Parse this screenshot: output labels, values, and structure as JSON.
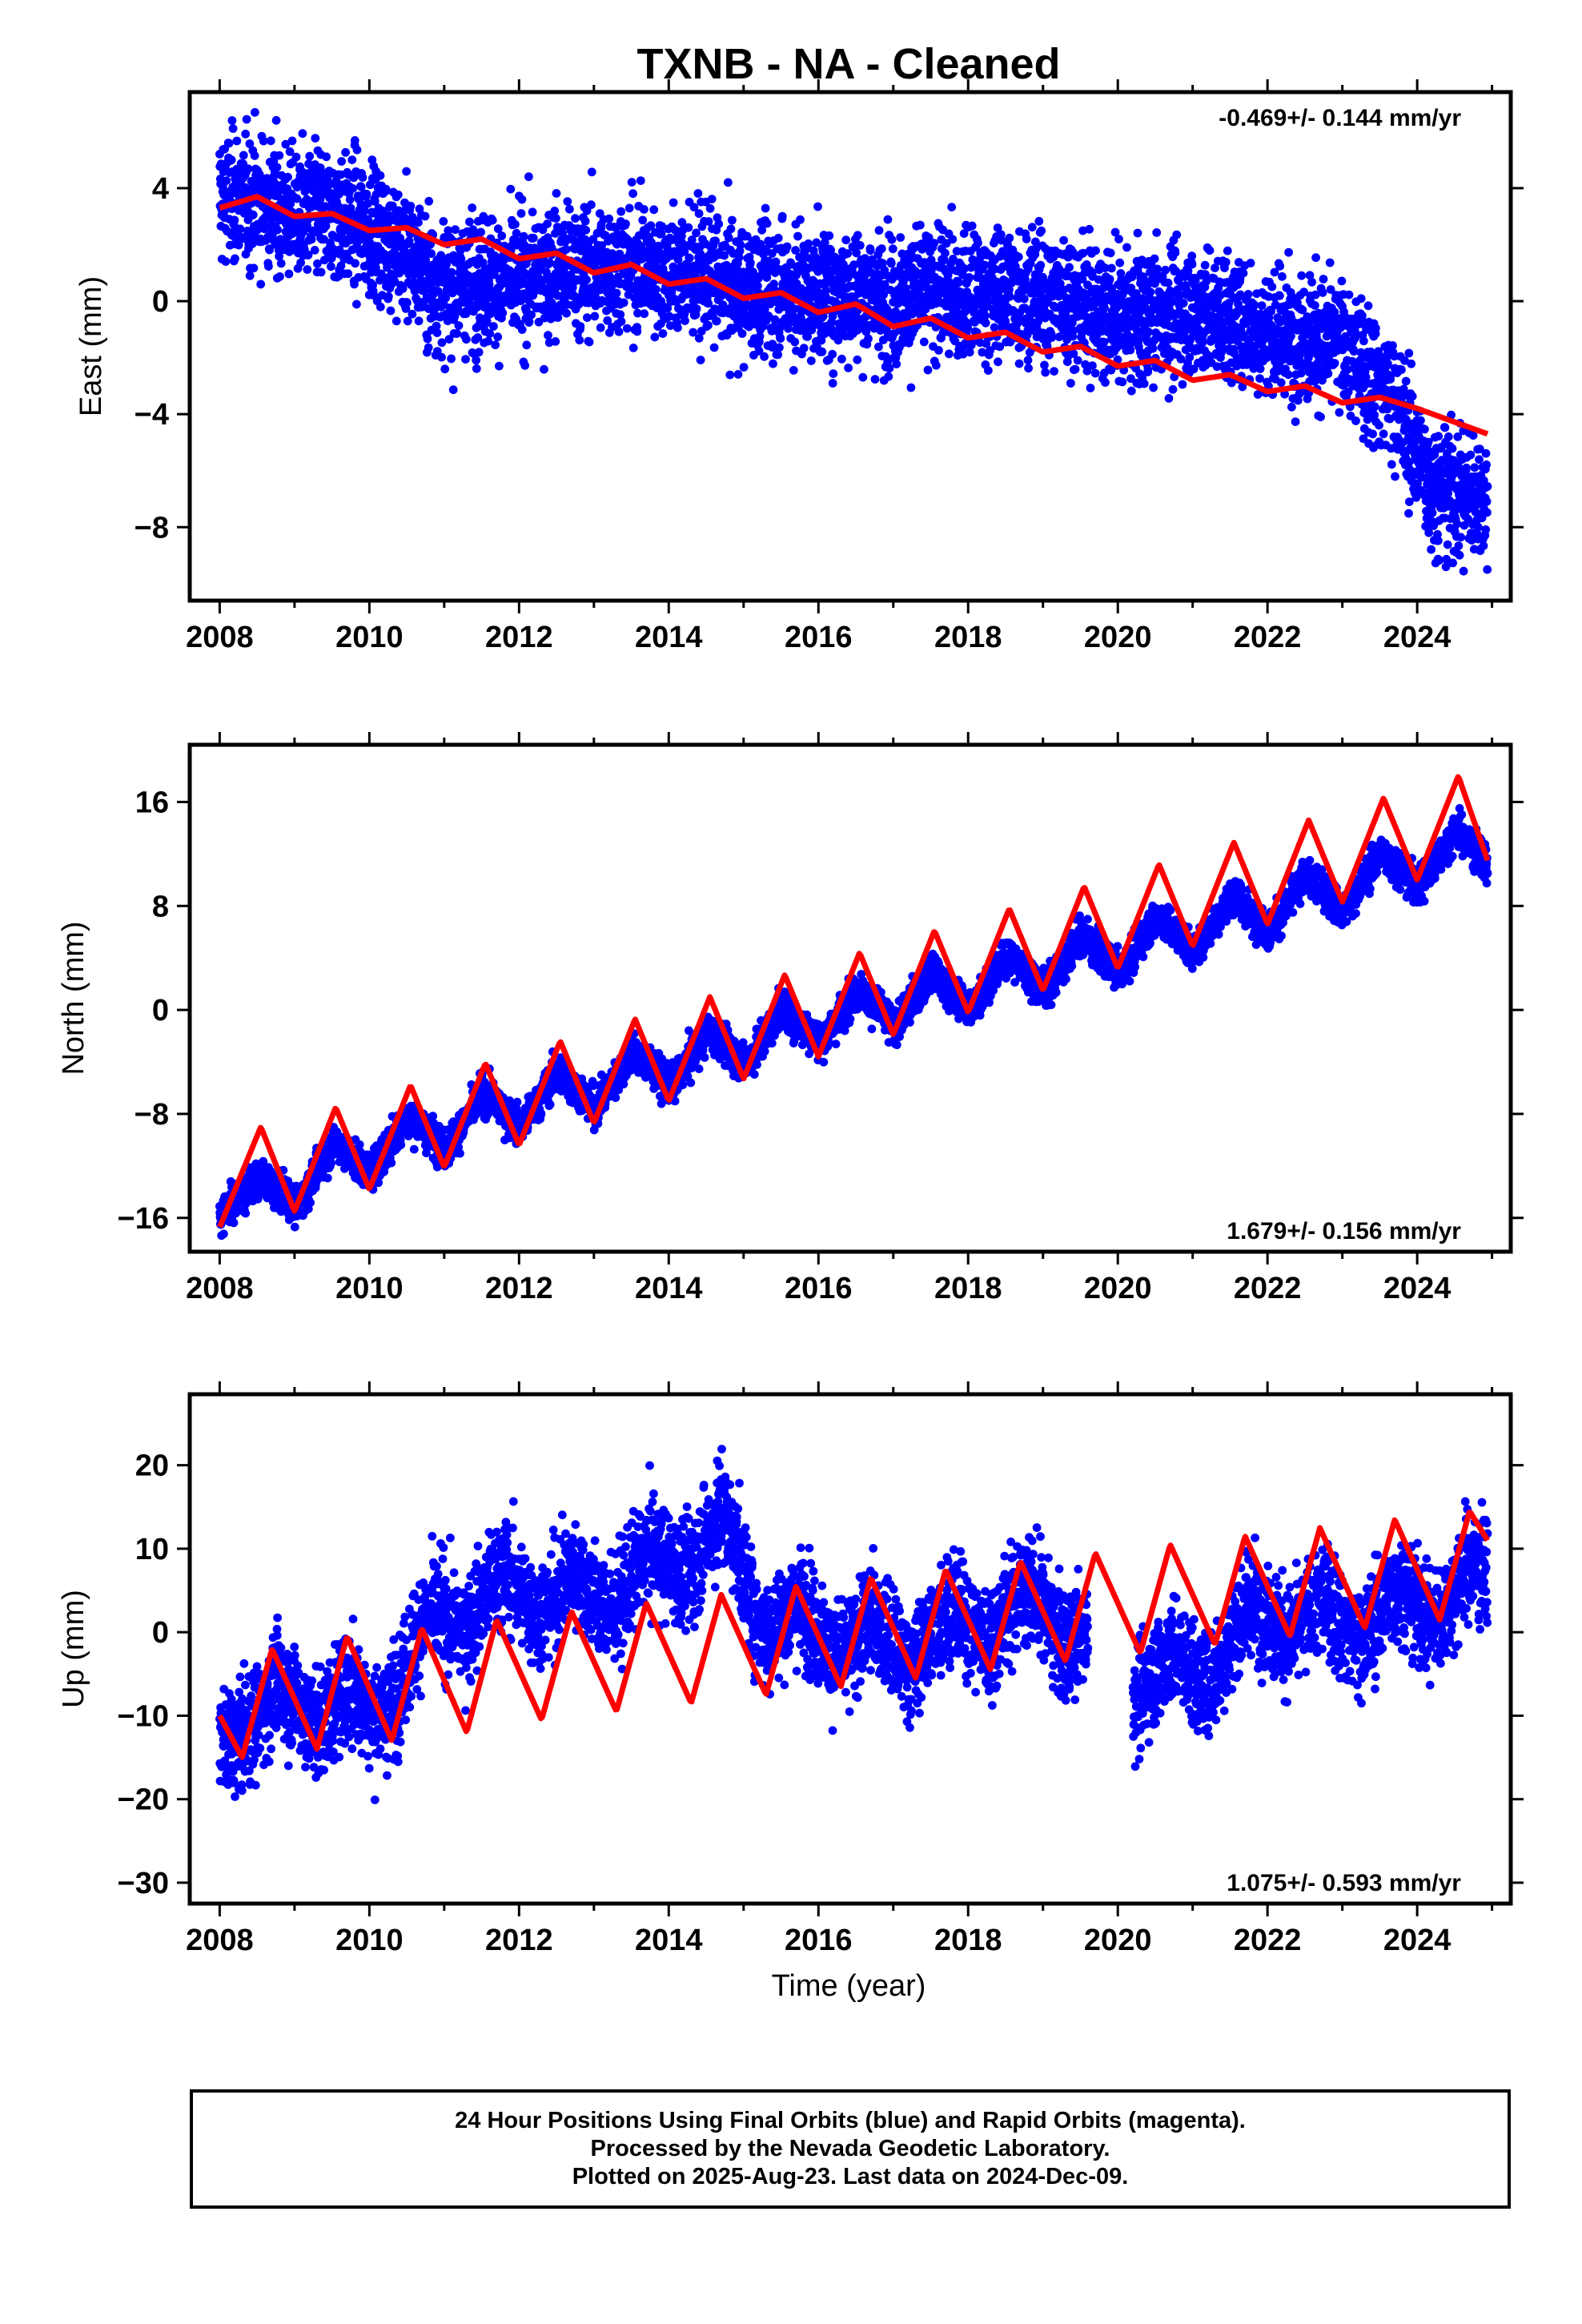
{
  "title": "TXNB  - NA - Cleaned",
  "colors": {
    "points": "#0000ff",
    "model": "#ff0000",
    "frame": "#000000"
  },
  "x_axis_label": "Time (year)",
  "footer": {
    "line1": "24 Hour Positions Using Final Orbits (blue) and Rapid Orbits (magenta).",
    "line2": "Processed by the Nevada Geodetic Laboratory.",
    "line3": "Plotted on 2025-Aug-23. Last data on 2024-Dec-09."
  },
  "chart_data": [
    {
      "type": "scatter",
      "component": "east",
      "ylabel": "East (mm)",
      "rate_label": "-0.469+/- 0.144 mm/yr",
      "xlim": [
        2007.6,
        2025.25
      ],
      "ylim": [
        -10.6,
        7.4
      ],
      "x_ticks": [
        2008,
        2010,
        2012,
        2014,
        2016,
        2018,
        2020,
        2022,
        2024
      ],
      "y_ticks": [
        -8,
        -4,
        0,
        4
      ],
      "y_tick_labels": [
        "−8",
        "−4",
        "0",
        "4"
      ],
      "series": [
        {
          "kind": "daily_positions",
          "legend": false,
          "x_range": [
            2008.0,
            2024.94
          ],
          "approx_points": 5400,
          "spread_mm": 1.6,
          "trend_samples": [
            [
              2008.0,
              3.7
            ],
            [
              2009.0,
              3.2
            ],
            [
              2010.0,
              2.8
            ],
            [
              2011.0,
              0.5
            ],
            [
              2012.0,
              0.9
            ],
            [
              2013.0,
              1.3
            ],
            [
              2014.0,
              1.2
            ],
            [
              2015.0,
              0.5
            ],
            [
              2016.0,
              0.3
            ],
            [
              2017.0,
              0.2
            ],
            [
              2018.0,
              0.3
            ],
            [
              2019.0,
              0.3
            ],
            [
              2020.2,
              -0.6
            ],
            [
              2021.0,
              -0.2
            ],
            [
              2022.0,
              -1.0
            ],
            [
              2023.0,
              -1.5
            ],
            [
              2023.7,
              -3.5
            ],
            [
              2024.2,
              -6.5
            ],
            [
              2024.9,
              -6.8
            ]
          ]
        },
        {
          "kind": "model_fit",
          "legend": false,
          "x_range": [
            2008.0,
            2024.94
          ],
          "rate_mm_per_yr": -0.469,
          "samples": [
            [
              2008.0,
              3.3
            ],
            [
              2008.5,
              3.7
            ],
            [
              2009.0,
              3.0
            ],
            [
              2009.5,
              3.1
            ],
            [
              2010.0,
              2.5
            ],
            [
              2010.5,
              2.6
            ],
            [
              2011.0,
              2.0
            ],
            [
              2011.5,
              2.2
            ],
            [
              2012.0,
              1.5
            ],
            [
              2012.5,
              1.7
            ],
            [
              2013.0,
              1.0
            ],
            [
              2013.5,
              1.3
            ],
            [
              2014.0,
              0.6
            ],
            [
              2014.5,
              0.8
            ],
            [
              2015.0,
              0.1
            ],
            [
              2015.5,
              0.3
            ],
            [
              2016.0,
              -0.4
            ],
            [
              2016.5,
              -0.1
            ],
            [
              2017.0,
              -0.9
            ],
            [
              2017.5,
              -0.6
            ],
            [
              2018.0,
              -1.3
            ],
            [
              2018.5,
              -1.1
            ],
            [
              2019.0,
              -1.8
            ],
            [
              2019.5,
              -1.6
            ],
            [
              2020.0,
              -2.3
            ],
            [
              2020.5,
              -2.1
            ],
            [
              2021.0,
              -2.8
            ],
            [
              2021.5,
              -2.6
            ],
            [
              2022.0,
              -3.2
            ],
            [
              2022.5,
              -3.0
            ],
            [
              2023.0,
              -3.6
            ],
            [
              2023.5,
              -3.4
            ],
            [
              2024.0,
              -3.8
            ],
            [
              2024.94,
              -4.7
            ]
          ]
        }
      ]
    },
    {
      "type": "scatter",
      "component": "north",
      "ylabel": "North (mm)",
      "rate_label": "1.679+/- 0.156 mm/yr",
      "xlim": [
        2007.6,
        2025.25
      ],
      "ylim": [
        -18.6,
        20.4
      ],
      "x_ticks": [
        2008,
        2010,
        2012,
        2014,
        2016,
        2018,
        2020,
        2022,
        2024
      ],
      "y_ticks": [
        -16,
        -8,
        0,
        8,
        16
      ],
      "y_tick_labels": [
        "−16",
        "−8",
        "0",
        "8",
        "16"
      ],
      "series": [
        {
          "kind": "daily_positions",
          "legend": false,
          "x_range": [
            2008.0,
            2024.94
          ],
          "approx_points": 5400,
          "spread_mm": 1.0,
          "trend_samples": [
            [
              2008.0,
              -16.0
            ],
            [
              2010.0,
              -11.0
            ],
            [
              2012.0,
              -7.5
            ],
            [
              2014.0,
              -4.5
            ],
            [
              2016.0,
              -1.0
            ],
            [
              2018.0,
              1.5
            ],
            [
              2020.0,
              4.5
            ],
            [
              2022.0,
              7.5
            ],
            [
              2024.0,
              11.0
            ],
            [
              2024.94,
              12.5
            ]
          ]
        },
        {
          "kind": "model_fit",
          "legend": false,
          "x_range": [
            2008.0,
            2024.94
          ],
          "rate_mm_per_yr": 1.679,
          "samples": [
            [
              2008.0,
              -16.7
            ],
            [
              2008.55,
              -9.0
            ],
            [
              2009.0,
              -15.5
            ],
            [
              2009.55,
              -7.5
            ],
            [
              2010.0,
              -13.8
            ],
            [
              2010.55,
              -5.8
            ],
            [
              2011.0,
              -12.1
            ],
            [
              2011.55,
              -4.1
            ],
            [
              2012.0,
              -10.4
            ],
            [
              2012.55,
              -2.4
            ],
            [
              2013.0,
              -8.7
            ],
            [
              2013.55,
              -0.7
            ],
            [
              2014.0,
              -7.0
            ],
            [
              2014.55,
              1.0
            ],
            [
              2015.0,
              -5.3
            ],
            [
              2015.55,
              2.7
            ],
            [
              2016.0,
              -3.6
            ],
            [
              2016.55,
              4.4
            ],
            [
              2017.0,
              -1.9
            ],
            [
              2017.55,
              6.1
            ],
            [
              2018.0,
              -0.2
            ],
            [
              2018.55,
              7.8
            ],
            [
              2019.0,
              1.5
            ],
            [
              2019.55,
              9.5
            ],
            [
              2020.0,
              3.2
            ],
            [
              2020.55,
              11.2
            ],
            [
              2021.0,
              4.9
            ],
            [
              2021.55,
              12.9
            ],
            [
              2022.0,
              6.6
            ],
            [
              2022.55,
              14.6
            ],
            [
              2023.0,
              8.3
            ],
            [
              2023.55,
              16.3
            ],
            [
              2024.0,
              10.0
            ],
            [
              2024.55,
              18.0
            ],
            [
              2024.94,
              11.5
            ]
          ]
        }
      ]
    },
    {
      "type": "scatter",
      "component": "up",
      "ylabel": "Up (mm)",
      "rate_label": "1.075+/- 0.593 mm/yr",
      "xlim": [
        2007.6,
        2025.25
      ],
      "ylim": [
        -32.5,
        28.5
      ],
      "x_ticks": [
        2008,
        2010,
        2012,
        2014,
        2016,
        2018,
        2020,
        2022,
        2024
      ],
      "y_ticks": [
        -30,
        -20,
        -10,
        0,
        10,
        20
      ],
      "y_tick_labels": [
        "−30",
        "−20",
        "−10",
        "0",
        "10",
        "20"
      ],
      "series": [
        {
          "kind": "daily_positions",
          "legend": false,
          "x_range": [
            2008.0,
            2024.94
          ],
          "approx_points": 5400,
          "spread_mm": 4.5,
          "trend_samples": [
            [
              2008.0,
              -13.0
            ],
            [
              2009.0,
              -8.0
            ],
            [
              2010.0,
              -10.0
            ],
            [
              2011.0,
              2.0
            ],
            [
              2012.0,
              5.0
            ],
            [
              2013.0,
              4.0
            ],
            [
              2014.0,
              8.0
            ],
            [
              2014.7,
              12.0
            ],
            [
              2015.3,
              2.0
            ],
            [
              2016.0,
              0.0
            ],
            [
              2017.0,
              -2.0
            ],
            [
              2018.0,
              1.0
            ],
            [
              2019.0,
              3.0
            ],
            [
              2020.2,
              -5.0
            ],
            [
              2021.0,
              -5.0
            ],
            [
              2022.0,
              2.0
            ],
            [
              2023.0,
              1.0
            ],
            [
              2024.0,
              3.0
            ],
            [
              2024.94,
              6.0
            ]
          ]
        },
        {
          "kind": "model_fit",
          "legend": false,
          "x_range": [
            2008.0,
            2024.94
          ],
          "rate_mm_per_yr": 1.075,
          "samples": [
            [
              2008.0,
              -10.0
            ],
            [
              2008.3,
              -15.0
            ],
            [
              2008.7,
              -2.0
            ],
            [
              2009.3,
              -14.0
            ],
            [
              2009.7,
              -0.5
            ],
            [
              2010.3,
              -13.0
            ],
            [
              2010.7,
              0.5
            ],
            [
              2011.3,
              -12.0
            ],
            [
              2011.7,
              1.5
            ],
            [
              2012.3,
              -10.5
            ],
            [
              2012.7,
              2.5
            ],
            [
              2013.3,
              -9.5
            ],
            [
              2013.7,
              3.5
            ],
            [
              2014.3,
              -8.5
            ],
            [
              2014.7,
              4.5
            ],
            [
              2015.3,
              -7.5
            ],
            [
              2015.7,
              5.5
            ],
            [
              2016.3,
              -6.5
            ],
            [
              2016.7,
              6.5
            ],
            [
              2017.3,
              -5.5
            ],
            [
              2017.7,
              7.5
            ],
            [
              2018.3,
              -4.5
            ],
            [
              2018.7,
              8.5
            ],
            [
              2019.3,
              -3.5
            ],
            [
              2019.7,
              9.5
            ],
            [
              2020.3,
              -2.5
            ],
            [
              2020.7,
              10.5
            ],
            [
              2021.3,
              -1.5
            ],
            [
              2021.7,
              11.5
            ],
            [
              2022.3,
              -0.5
            ],
            [
              2022.7,
              12.5
            ],
            [
              2023.3,
              0.5
            ],
            [
              2023.7,
              13.5
            ],
            [
              2024.3,
              1.5
            ],
            [
              2024.7,
              14.5
            ],
            [
              2024.94,
              11.0
            ]
          ]
        }
      ]
    }
  ]
}
